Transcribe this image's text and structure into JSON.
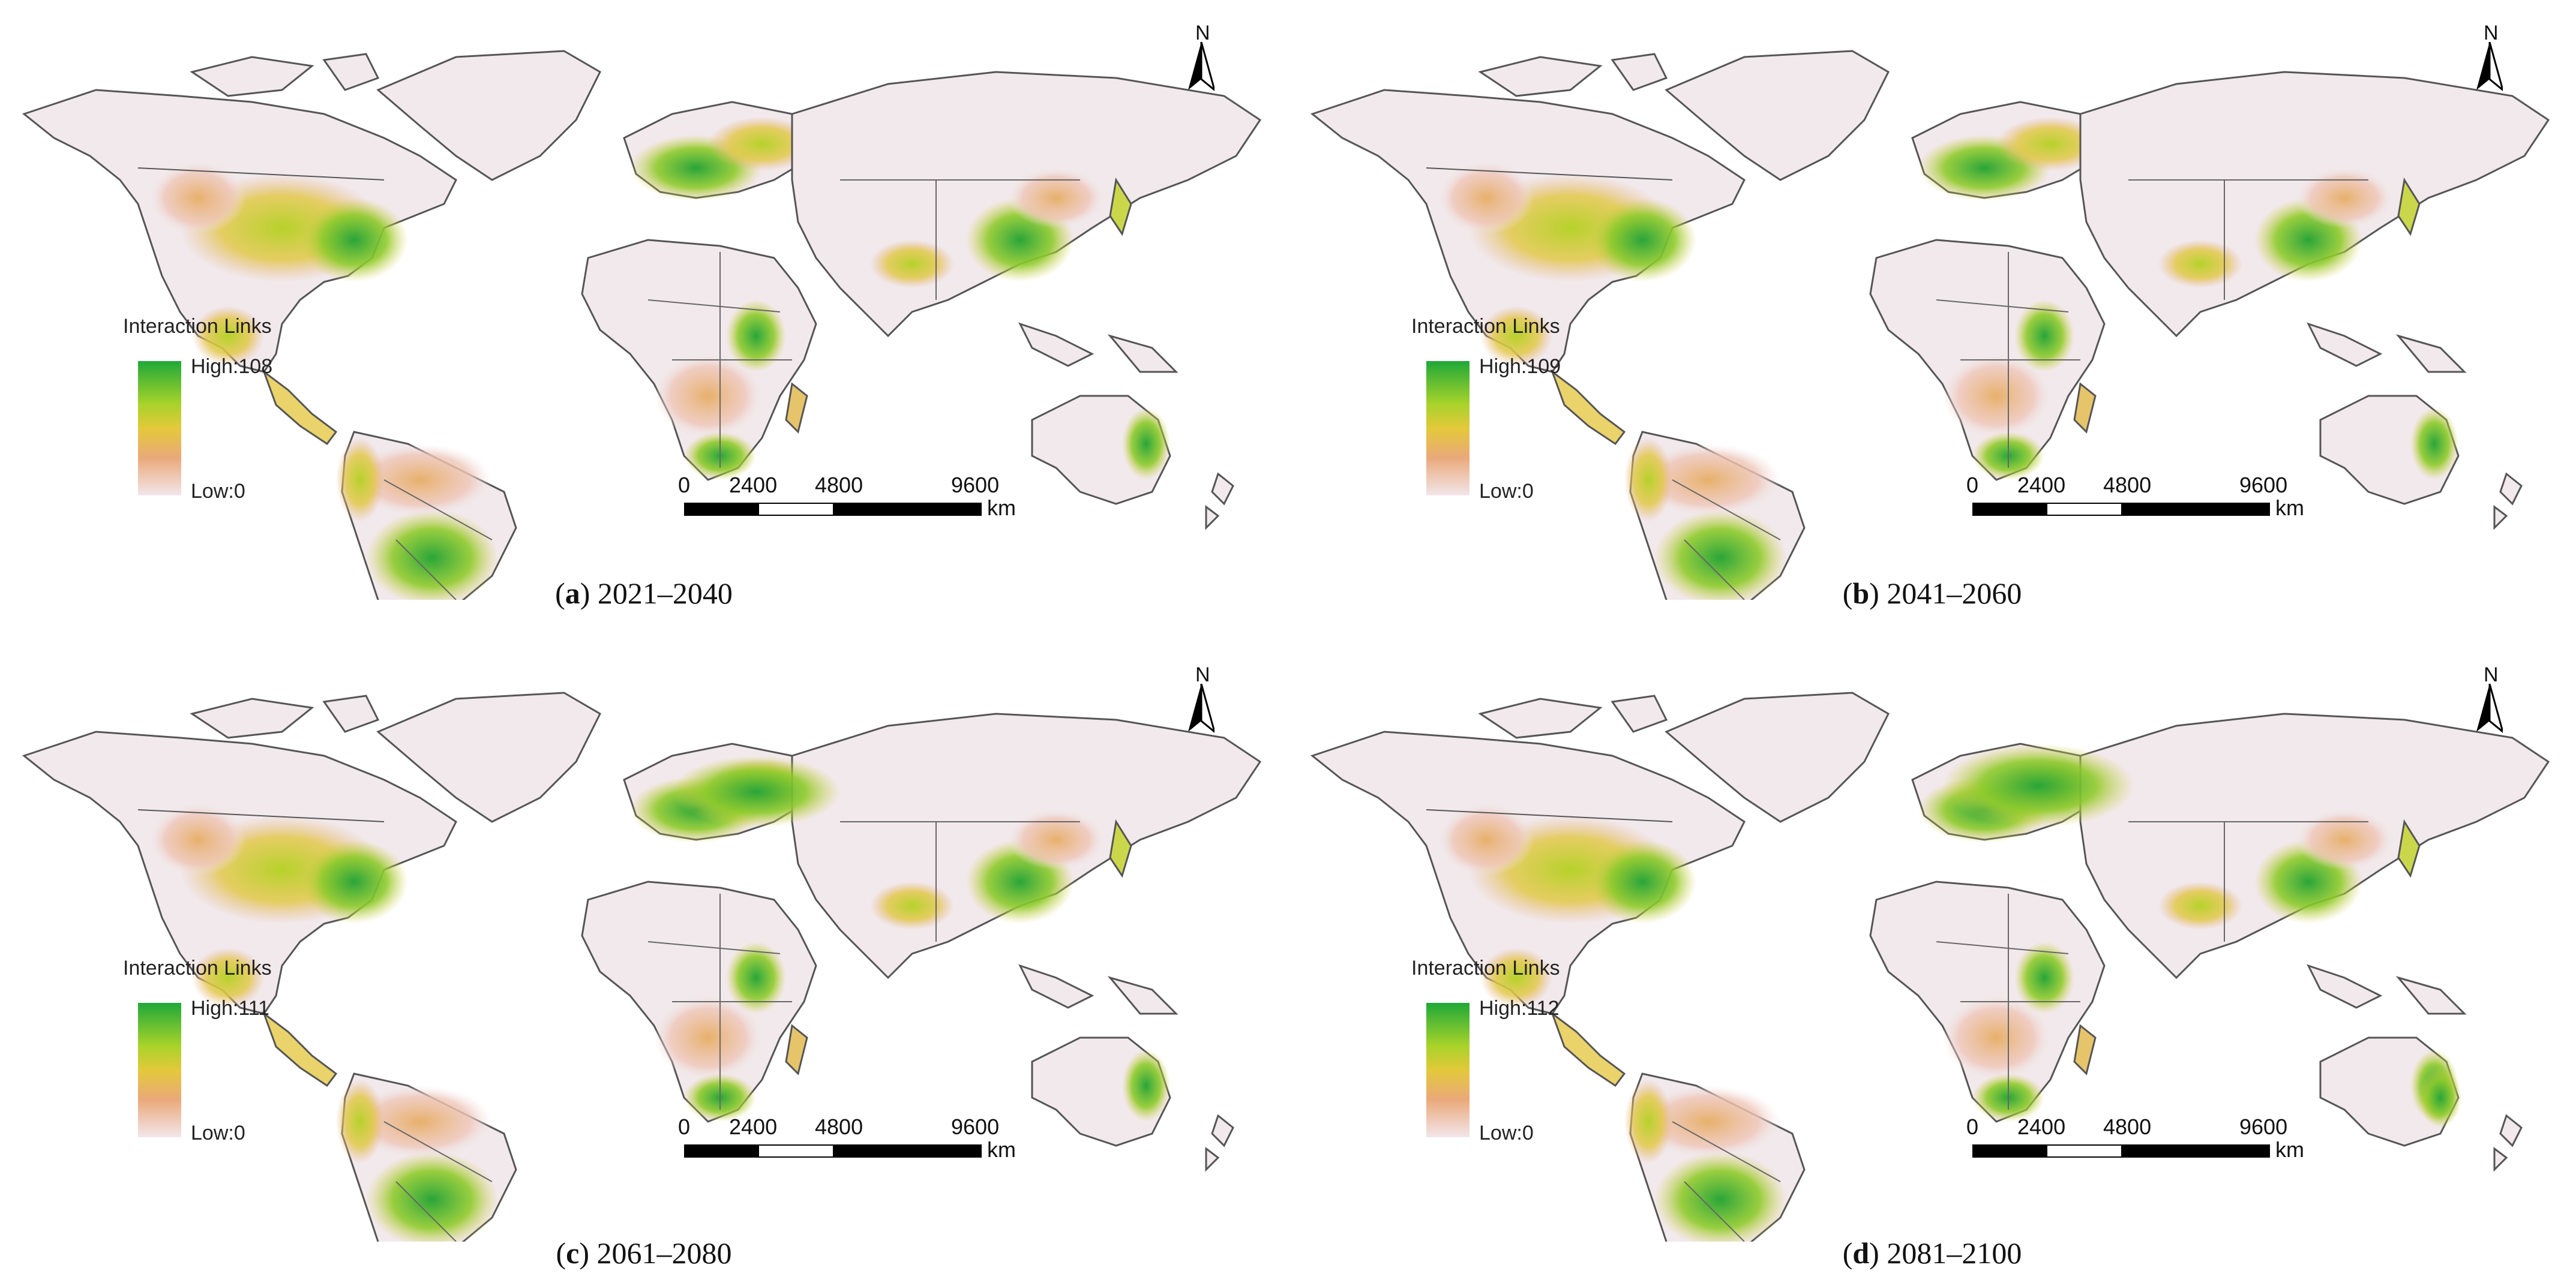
{
  "legend_title": "Interaction Links",
  "legend_low": "Low:0",
  "colors": {
    "high": "#1fa839",
    "mid_high": "#a8d32a",
    "mid": "#e3c93a",
    "mid_low": "#eaa97a",
    "low": "#f2e6ea",
    "land_base": "#f1e9eb",
    "border": "#555555"
  },
  "scale_bar": {
    "ticks": [
      "0",
      "2400",
      "4800",
      "9600"
    ],
    "unit": "km"
  },
  "north_label": "N",
  "north_icon": "north-arrow-icon",
  "panels": [
    {
      "letter": "a",
      "period": "2021–2040",
      "legend_high": "High:108"
    },
    {
      "letter": "b",
      "period": "2041–2060",
      "legend_high": "High:109"
    },
    {
      "letter": "c",
      "period": "2061–2080",
      "legend_high": "High:111"
    },
    {
      "letter": "d",
      "period": "2081–2100",
      "legend_high": "High:112"
    }
  ]
}
